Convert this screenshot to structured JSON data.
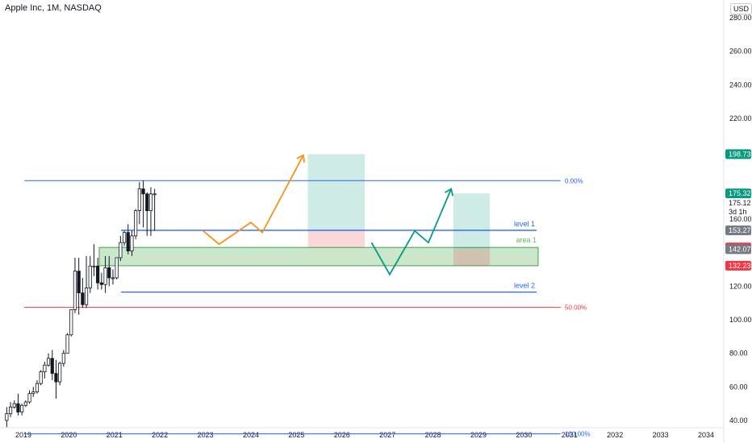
{
  "header": {
    "title": "Apple Inc, 1M, NASDAQ",
    "currency": "USD"
  },
  "chart_data": {
    "type": "candlestick",
    "symbol": "Apple Inc",
    "interval": "1M",
    "exchange": "NASDAQ",
    "x_ticks": [
      "2019",
      "2020",
      "2021",
      "2022",
      "2023",
      "2024",
      "2025",
      "2026",
      "2027",
      "2028",
      "2029",
      "2030",
      "2031",
      "2032",
      "2033",
      "2034"
    ],
    "y_ticks": [
      40,
      60,
      80,
      100,
      120,
      140,
      160,
      180,
      200,
      220,
      240,
      260,
      280
    ],
    "y_tick_labels": [
      "40.00",
      "60.00",
      "80.00",
      "100.00",
      "120.00",
      "",
      "160.00",
      "",
      "",
      "220.00",
      "240.00",
      "260.00",
      "280.00"
    ],
    "ylim": [
      37,
      290
    ],
    "candles": [
      {
        "o": 40,
        "h": 48,
        "l": 36,
        "c": 44
      },
      {
        "o": 44,
        "h": 51,
        "l": 42,
        "c": 48
      },
      {
        "o": 48,
        "h": 52,
        "l": 47,
        "c": 50
      },
      {
        "o": 50,
        "h": 56,
        "l": 43,
        "c": 45
      },
      {
        "o": 45,
        "h": 50,
        "l": 43,
        "c": 49
      },
      {
        "o": 49,
        "h": 52,
        "l": 48,
        "c": 51
      },
      {
        "o": 51,
        "h": 58,
        "l": 50,
        "c": 56
      },
      {
        "o": 56,
        "h": 60,
        "l": 54,
        "c": 57
      },
      {
        "o": 57,
        "h": 64,
        "l": 56,
        "c": 62
      },
      {
        "o": 62,
        "h": 70,
        "l": 61,
        "c": 69
      },
      {
        "o": 69,
        "h": 75,
        "l": 65,
        "c": 73
      },
      {
        "o": 73,
        "h": 80,
        "l": 72,
        "c": 77
      },
      {
        "o": 77,
        "h": 82,
        "l": 64,
        "c": 68
      },
      {
        "o": 68,
        "h": 76,
        "l": 53,
        "c": 63
      },
      {
        "o": 63,
        "h": 75,
        "l": 61,
        "c": 74
      },
      {
        "o": 74,
        "h": 82,
        "l": 72,
        "c": 80
      },
      {
        "o": 80,
        "h": 92,
        "l": 80,
        "c": 91
      },
      {
        "o": 91,
        "h": 106,
        "l": 90,
        "c": 106
      },
      {
        "o": 106,
        "h": 137,
        "l": 104,
        "c": 129
      },
      {
        "o": 129,
        "h": 137,
        "l": 103,
        "c": 116
      },
      {
        "o": 116,
        "h": 125,
        "l": 107,
        "c": 109
      },
      {
        "o": 109,
        "h": 138,
        "l": 107,
        "c": 119
      },
      {
        "o": 119,
        "h": 138,
        "l": 116,
        "c": 132
      },
      {
        "o": 132,
        "h": 145,
        "l": 126,
        "c": 132
      },
      {
        "o": 132,
        "h": 137,
        "l": 118,
        "c": 122
      },
      {
        "o": 122,
        "h": 128,
        "l": 118,
        "c": 121
      },
      {
        "o": 121,
        "h": 138,
        "l": 116,
        "c": 131
      },
      {
        "o": 131,
        "h": 138,
        "l": 120,
        "c": 125
      },
      {
        "o": 125,
        "h": 130,
        "l": 121,
        "c": 125
      },
      {
        "o": 125,
        "h": 137,
        "l": 124,
        "c": 137
      },
      {
        "o": 137,
        "h": 150,
        "l": 135,
        "c": 146
      },
      {
        "o": 146,
        "h": 153,
        "l": 144,
        "c": 152
      },
      {
        "o": 152,
        "h": 157,
        "l": 139,
        "c": 141
      },
      {
        "o": 141,
        "h": 153,
        "l": 138,
        "c": 150
      },
      {
        "o": 150,
        "h": 166,
        "l": 148,
        "c": 165
      },
      {
        "o": 165,
        "h": 182,
        "l": 157,
        "c": 178
      },
      {
        "o": 178,
        "h": 183,
        "l": 155,
        "c": 175
      },
      {
        "o": 175,
        "h": 176,
        "l": 150,
        "c": 165
      },
      {
        "o": 165,
        "h": 179,
        "l": 150,
        "c": 175
      },
      {
        "o": 175,
        "h": 178,
        "l": 153,
        "c": 175
      }
    ],
    "fib_levels": [
      {
        "label": "0.00%",
        "value": 182.9,
        "color": "#2962ff"
      },
      {
        "label": "50.00%",
        "value": 107.4,
        "color": "#f23645"
      },
      {
        "label": "100.00%",
        "value": 32,
        "color": "#2962ff"
      }
    ],
    "levels": [
      {
        "name": "level 1",
        "value": 153.3,
        "color": "#2962ff"
      },
      {
        "name": "level 2",
        "value": 116.5,
        "color": "#2962ff"
      }
    ],
    "zones": [
      {
        "name": "area 1",
        "top": 143.1,
        "bottom": 132.2,
        "color": "#66bb6a"
      }
    ],
    "positions": [
      {
        "from": "2025.25",
        "to": "2026.5",
        "entry": 153.3,
        "target": 198.7,
        "stop": 143.1
      },
      {
        "from": "2028.45",
        "to": "2029.25",
        "entry": 142.1,
        "target": 175.3,
        "stop": 132.2
      }
    ],
    "paths": [
      {
        "color": "#f7931a",
        "points": [
          [
            "2022.95",
            153
          ],
          [
            "2023.3",
            145
          ],
          [
            "2024.0",
            158
          ],
          [
            "2024.25",
            152
          ],
          [
            "2025.15",
            198
          ]
        ]
      },
      {
        "color": "#089981",
        "points": [
          [
            "2026.65",
            146
          ],
          [
            "2027.05",
            127
          ],
          [
            "2027.6",
            153
          ],
          [
            "2027.9",
            146
          ],
          [
            "2028.4",
            178
          ]
        ]
      }
    ],
    "price_tags": [
      {
        "value": 198.73,
        "label": "198.73",
        "color": "#089981"
      },
      {
        "value": 175.32,
        "label": "175.32",
        "color": "#089981"
      },
      {
        "value": 153.27,
        "label": "153.27",
        "color": "#787b86"
      },
      {
        "value": 143.09,
        "label": "143.09",
        "color": "#f23645"
      },
      {
        "value": 142.07,
        "label": "142.07",
        "color": "#787b86"
      },
      {
        "value": 132.23,
        "label": "132.23",
        "color": "#f23645"
      }
    ],
    "last_price_text": [
      "175.12",
      "3d 1h"
    ],
    "annotations": [
      "level 1",
      "area 1",
      "level 2"
    ]
  }
}
